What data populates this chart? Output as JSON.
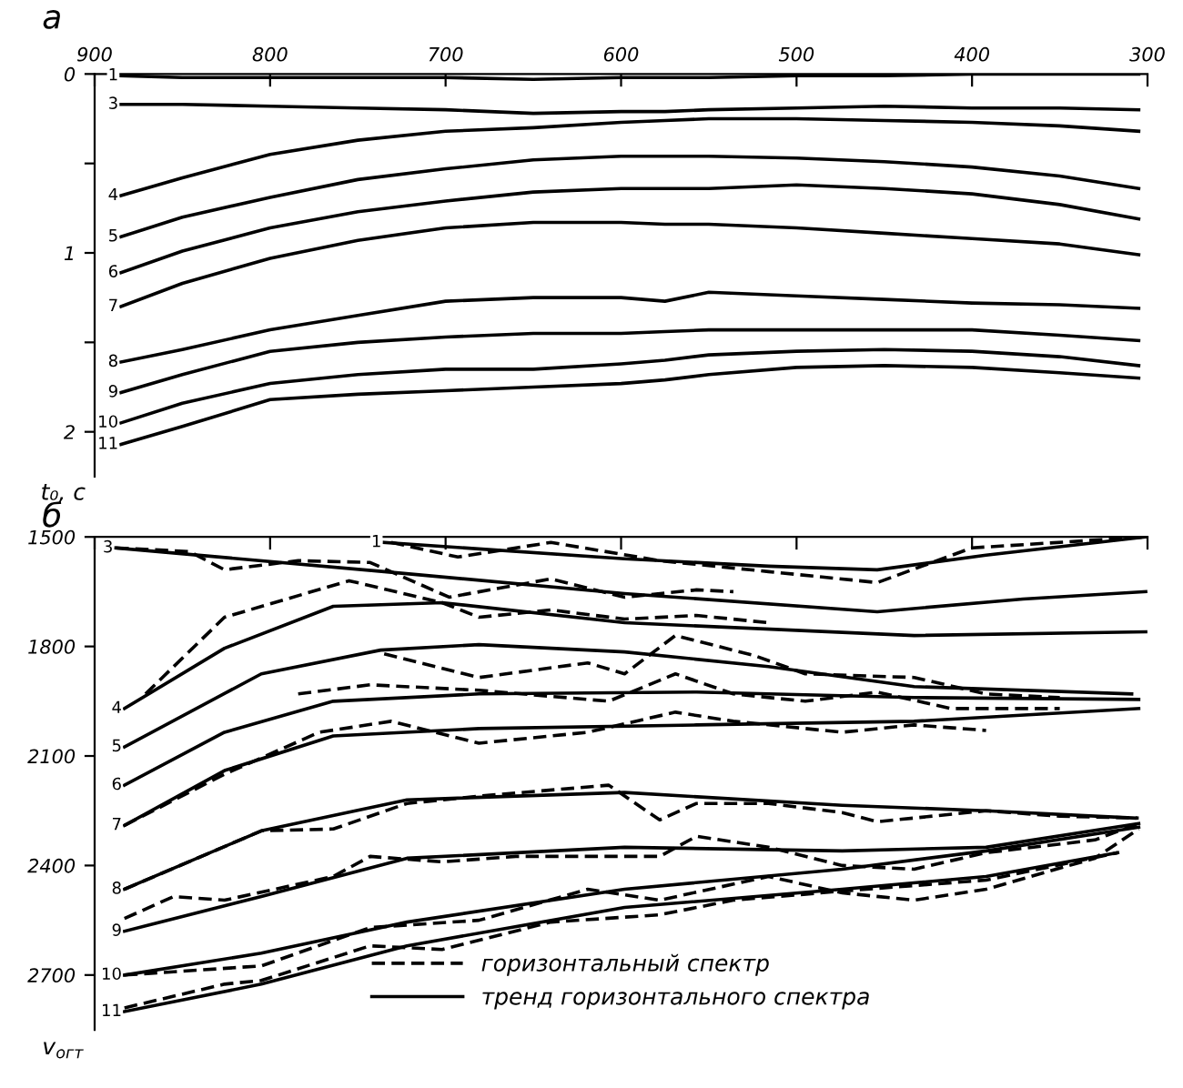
{
  "chart_data": [
    {
      "type": "line",
      "title": "а",
      "ylabel": "t₀, c",
      "xlim": [
        900,
        300
      ],
      "xticks": [
        900,
        800,
        700,
        600,
        500,
        400,
        300
      ],
      "ylim": [
        2.25,
        0
      ],
      "yticks": [
        0,
        {
          "value": 0.5,
          "label": null
        },
        1,
        {
          "value": 1.5,
          "label": null
        },
        2
      ],
      "x": [
        885,
        850,
        800,
        750,
        700,
        650,
        600,
        575,
        550,
        500,
        450,
        400,
        350,
        305
      ],
      "series": [
        {
          "color": "#000000",
          "line_style": "solid",
          "values": [
            0.01,
            0.02,
            0.02,
            0.02,
            0.02,
            0.03,
            0.02,
            0.02,
            0.02,
            0.01,
            0.01,
            0,
            0,
            0
          ]
        },
        {
          "color": "#000000",
          "line_style": "solid",
          "values": [
            0.17,
            0.17,
            0.18,
            0.19,
            0.2,
            0.22,
            0.21,
            0.21,
            0.2,
            0.19,
            0.18,
            0.19,
            0.19,
            0.2
          ]
        },
        {
          "color": "#000000",
          "line_style": "solid",
          "values": [
            0.68,
            0.58,
            0.45,
            0.37,
            0.32,
            0.3,
            0.27,
            0.26,
            0.25,
            0.25,
            0.26,
            0.27,
            0.29,
            0.32
          ]
        },
        {
          "color": "#000000",
          "line_style": "solid",
          "values": [
            0.91,
            0.8,
            0.69,
            0.59,
            0.53,
            0.48,
            0.46,
            0.46,
            0.46,
            0.47,
            0.49,
            0.52,
            0.57,
            0.64
          ]
        },
        {
          "color": "#000000",
          "line_style": "solid",
          "values": [
            1.11,
            0.99,
            0.86,
            0.77,
            0.71,
            0.66,
            0.64,
            0.64,
            0.64,
            0.62,
            0.64,
            0.67,
            0.73,
            0.81
          ]
        },
        {
          "color": "#000000",
          "line_style": "solid",
          "values": [
            1.3,
            1.17,
            1.03,
            0.93,
            0.86,
            0.83,
            0.83,
            0.84,
            0.84,
            0.86,
            0.89,
            0.92,
            0.95,
            1.01
          ]
        },
        {
          "color": "#000000",
          "line_style": "solid",
          "values": [
            1.61,
            1.54,
            1.43,
            1.35,
            1.27,
            1.25,
            1.25,
            1.27,
            1.22,
            1.24,
            1.26,
            1.28,
            1.29,
            1.31
          ]
        },
        {
          "color": "#000000",
          "line_style": "solid",
          "values": [
            1.78,
            1.68,
            1.55,
            1.5,
            1.47,
            1.45,
            1.45,
            1.44,
            1.43,
            1.43,
            1.43,
            1.43,
            1.46,
            1.49
          ]
        },
        {
          "color": "#000000",
          "line_style": "solid",
          "values": [
            1.95,
            1.84,
            1.73,
            1.68,
            1.65,
            1.65,
            1.62,
            1.6,
            1.57,
            1.55,
            1.54,
            1.55,
            1.58,
            1.63
          ]
        },
        {
          "color": "#000000",
          "line_style": "solid",
          "values": [
            2.07,
            1.97,
            1.82,
            1.79,
            1.77,
            1.75,
            1.73,
            1.71,
            1.68,
            1.64,
            1.63,
            1.64,
            1.67,
            1.7
          ]
        }
      ],
      "annotations": [
        {
          "text": "1",
          "x": 885,
          "y": 0.01
        },
        {
          "text": "3",
          "x": 885,
          "y": 0.17
        },
        {
          "text": "4",
          "x": 885,
          "y": 0.68
        },
        {
          "text": "5",
          "x": 885,
          "y": 0.91
        },
        {
          "text": "6",
          "x": 885,
          "y": 1.11
        },
        {
          "text": "7",
          "x": 885,
          "y": 1.3
        },
        {
          "text": "8",
          "x": 885,
          "y": 1.61
        },
        {
          "text": "9",
          "x": 885,
          "y": 1.78
        },
        {
          "text": "10",
          "x": 885,
          "y": 1.95
        },
        {
          "text": "11",
          "x": 885,
          "y": 2.07
        }
      ]
    },
    {
      "type": "line",
      "title": "б",
      "ylabel": "v$_{огт}$",
      "xlim": [
        900,
        300
      ],
      "xticks": [
        900,
        800,
        700,
        600,
        500,
        400,
        300
      ],
      "ylim": [
        2850,
        1500
      ],
      "yticks": [
        1500,
        1800,
        2100,
        2400,
        2700
      ],
      "tick_labels": "y",
      "legend": "bottom",
      "series": [
        {
          "name": "горизонтальный спектр",
          "color": "#000000",
          "line_style": "dashed",
          "x": [
            731,
            693,
            640,
            578,
            516,
            454,
            400,
            301
          ],
          "values": [
            1515,
            1555,
            1515,
            1565,
            1595,
            1625,
            1530,
            1500
          ]
        },
        {
          "name": "тренд горизонтального спектра",
          "color": "#000000",
          "line_style": "solid",
          "x": [
            735,
            598,
            516,
            454,
            392,
            301
          ],
          "values": [
            1515,
            1560,
            1580,
            1590,
            1550,
            1500
          ]
        },
        {
          "color": "#000000",
          "line_style": "solid",
          "x": [
            888,
            735,
            598,
            454,
            371,
            301
          ],
          "values": [
            1530,
            1595,
            1655,
            1705,
            1670,
            1650
          ]
        },
        {
          "color": "#000000",
          "line_style": "dashed",
          "x": [
            888,
            846,
            826,
            784,
            743,
            698,
            640,
            598,
            557,
            536
          ],
          "values": [
            1530,
            1540,
            1590,
            1565,
            1570,
            1665,
            1615,
            1665,
            1645,
            1650
          ]
        },
        {
          "color": "#000000",
          "line_style": "solid",
          "x": [
            883,
            826,
            764,
            702,
            598,
            433,
            301
          ],
          "values": [
            1970,
            1805,
            1690,
            1680,
            1735,
            1770,
            1760
          ]
        },
        {
          "color": "#000000",
          "line_style": "dashed",
          "x": [
            871,
            826,
            755,
            702,
            681,
            640,
            598,
            557,
            516
          ],
          "values": [
            1930,
            1720,
            1620,
            1680,
            1720,
            1700,
            1725,
            1715,
            1735
          ]
        },
        {
          "color": "#000000",
          "line_style": "solid",
          "x": [
            883,
            805,
            737,
            681,
            598,
            516,
            433,
            309
          ],
          "values": [
            2075,
            1875,
            1810,
            1795,
            1815,
            1855,
            1910,
            1930
          ]
        },
        {
          "color": "#000000",
          "line_style": "dashed",
          "x": [
            735,
            681,
            619,
            598,
            569,
            524,
            495,
            433,
            392,
            350
          ],
          "values": [
            1820,
            1885,
            1845,
            1875,
            1770,
            1825,
            1875,
            1885,
            1930,
            1940
          ]
        },
        {
          "color": "#000000",
          "line_style": "solid",
          "x": [
            883,
            826,
            764,
            681,
            557,
            433,
            305
          ],
          "values": [
            2180,
            2035,
            1950,
            1930,
            1925,
            1940,
            1945
          ]
        },
        {
          "color": "#000000",
          "line_style": "dashed",
          "x": [
            784,
            743,
            681,
            607,
            569,
            536,
            495,
            454,
            412,
            350
          ],
          "values": [
            1930,
            1905,
            1920,
            1950,
            1875,
            1930,
            1950,
            1925,
            1970,
            1970
          ]
        },
        {
          "color": "#000000",
          "line_style": "solid",
          "x": [
            883,
            826,
            764,
            681,
            557,
            433,
            305
          ],
          "values": [
            2290,
            2140,
            2045,
            2025,
            2015,
            2005,
            1970
          ]
        },
        {
          "color": "#000000",
          "line_style": "dashed",
          "x": [
            883,
            826,
            772,
            731,
            681,
            619,
            569,
            536,
            474,
            433,
            392
          ],
          "values": [
            2290,
            2150,
            2035,
            2005,
            2065,
            2035,
            1980,
            2005,
            2035,
            2015,
            2030
          ]
        },
        {
          "color": "#000000",
          "line_style": "solid",
          "x": [
            883,
            805,
            722,
            598,
            474,
            392,
            307
          ],
          "values": [
            2465,
            2305,
            2220,
            2200,
            2235,
            2250,
            2270
          ]
        },
        {
          "color": "#000000",
          "line_style": "dashed",
          "x": [
            883,
            805,
            764,
            722,
            681,
            607,
            578,
            557,
            516,
            474,
            454,
            392,
            350,
            305
          ],
          "values": [
            2465,
            2305,
            2300,
            2230,
            2210,
            2180,
            2275,
            2230,
            2230,
            2255,
            2280,
            2250,
            2265,
            2270
          ]
        },
        {
          "color": "#000000",
          "line_style": "solid",
          "x": [
            883,
            805,
            722,
            598,
            474,
            392,
            305
          ],
          "values": [
            2580,
            2485,
            2380,
            2350,
            2360,
            2350,
            2285
          ]
        },
        {
          "color": "#000000",
          "line_style": "dashed",
          "x": [
            883,
            855,
            826,
            764,
            743,
            702,
            660,
            578,
            557,
            516,
            474,
            433,
            392,
            330,
            305
          ],
          "values": [
            2545,
            2485,
            2495,
            2430,
            2375,
            2390,
            2375,
            2375,
            2320,
            2350,
            2400,
            2410,
            2365,
            2330,
            2285
          ]
        },
        {
          "color": "#000000",
          "line_style": "solid",
          "x": [
            883,
            805,
            722,
            598,
            474,
            392,
            305
          ],
          "values": [
            2700,
            2640,
            2555,
            2465,
            2410,
            2360,
            2295
          ]
        },
        {
          "color": "#000000",
          "line_style": "dashed",
          "x": [
            883,
            805,
            743,
            681,
            619,
            578,
            516,
            474,
            433,
            392,
            330,
            305
          ],
          "values": [
            2700,
            2675,
            2570,
            2550,
            2465,
            2495,
            2430,
            2475,
            2495,
            2465,
            2380,
            2300
          ]
        },
        {
          "color": "#000000",
          "line_style": "solid",
          "x": [
            883,
            805,
            722,
            598,
            474,
            392,
            317
          ],
          "values": [
            2800,
            2725,
            2620,
            2515,
            2465,
            2430,
            2365
          ]
        },
        {
          "color": "#000000",
          "line_style": "dashed",
          "x": [
            883,
            826,
            805,
            743,
            702,
            640,
            578,
            536,
            474,
            392,
            317
          ],
          "values": [
            2790,
            2725,
            2715,
            2620,
            2630,
            2555,
            2535,
            2495,
            2470,
            2440,
            2365
          ]
        }
      ],
      "annotations": [
        {
          "text": "1",
          "x": 735,
          "y": 1515
        },
        {
          "text": "3",
          "x": 888,
          "y": 1530
        },
        {
          "text": "4",
          "x": 883,
          "y": 1970
        },
        {
          "text": "5",
          "x": 883,
          "y": 2075
        },
        {
          "text": "6",
          "x": 883,
          "y": 2180
        },
        {
          "text": "7",
          "x": 883,
          "y": 2290
        },
        {
          "text": "8",
          "x": 883,
          "y": 2465
        },
        {
          "text": "9",
          "x": 883,
          "y": 2580
        },
        {
          "text": "10",
          "x": 883,
          "y": 2700
        },
        {
          "text": "11",
          "x": 883,
          "y": 2800
        }
      ]
    }
  ]
}
